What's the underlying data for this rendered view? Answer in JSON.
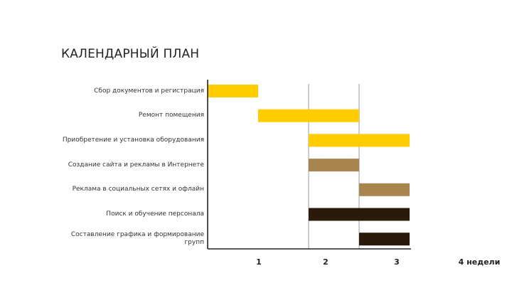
{
  "chart_data": {
    "type": "bar",
    "subtype": "gantt",
    "title": "КАЛЕНДАРНЫЙ ПЛАН",
    "tasks": [
      {
        "label": "Сбор документов и  регистрация",
        "start": 0,
        "end": 1,
        "color": "#FFCC00"
      },
      {
        "label": "Ремонт помещения",
        "start": 1,
        "end": 3,
        "color": "#FFCC00"
      },
      {
        "label": "Приобретение и установка оборудования",
        "start": 2,
        "end": 4,
        "color": "#FFCC00"
      },
      {
        "label": "Создание сайта  и рекламы в Интернете",
        "start": 2,
        "end": 3,
        "color": "#A8844E"
      },
      {
        "label": "Реклама в социальных сетях и офлайн",
        "start": 3,
        "end": 4,
        "color": "#A8844E"
      },
      {
        "label": "Поиск и обучение персонала",
        "start": 2,
        "end": 4,
        "color": "#2B1A0A"
      },
      {
        "label": "Составление графика и формирование групп",
        "start": 3,
        "end": 4,
        "color": "#2B1A0A"
      }
    ],
    "x_ticks": [
      "1",
      "2",
      "3",
      "4 недели"
    ],
    "xlim": [
      0,
      4
    ],
    "gridlines": [
      2,
      3
    ]
  }
}
